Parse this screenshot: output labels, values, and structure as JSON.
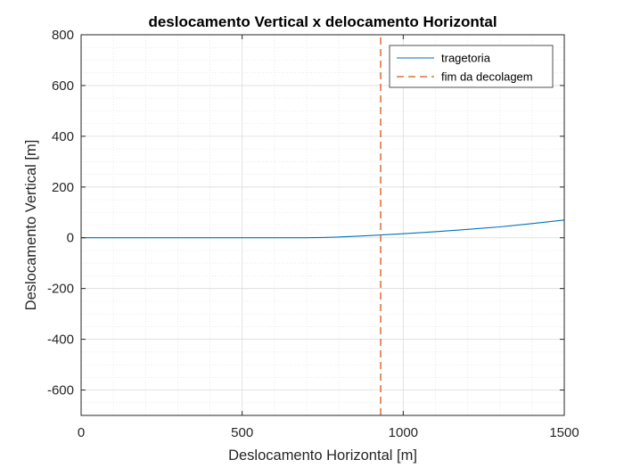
{
  "chart_data": {
    "type": "line",
    "title": "deslocamento Vertical x delocamento Horizontal",
    "xlabel": "Deslocamento Horizontal [m]",
    "ylabel": "Deslocamento Vertical [m]",
    "xlim": [
      0,
      1500
    ],
    "ylim": [
      -700,
      800
    ],
    "xticks": [
      0,
      500,
      1000,
      1500
    ],
    "yticks": [
      -600,
      -400,
      -200,
      0,
      200,
      400,
      600,
      800
    ],
    "xtick_labels": [
      "0",
      "500",
      "1000",
      "1500"
    ],
    "ytick_labels": [
      "-600",
      "-400",
      "-200",
      "0",
      "200",
      "400",
      "600",
      "800"
    ],
    "grid": true,
    "minor_grid": true,
    "legend_position": "top-right",
    "series": [
      {
        "name": "tragetoria",
        "style": "solid",
        "color": "#0072BD",
        "x": [
          0,
          100,
          200,
          300,
          400,
          500,
          600,
          700,
          750,
          800,
          850,
          900,
          930,
          1000,
          1100,
          1200,
          1300,
          1400,
          1500
        ],
        "y": [
          0,
          0,
          0,
          0,
          0,
          0,
          0,
          0,
          1,
          3,
          6,
          9,
          11,
          16,
          24,
          33,
          43,
          56,
          70
        ]
      },
      {
        "name": "fim da decolagem",
        "style": "dashed",
        "color": "#D95319",
        "x": [
          930,
          930
        ],
        "y": [
          -700,
          800
        ]
      }
    ]
  }
}
